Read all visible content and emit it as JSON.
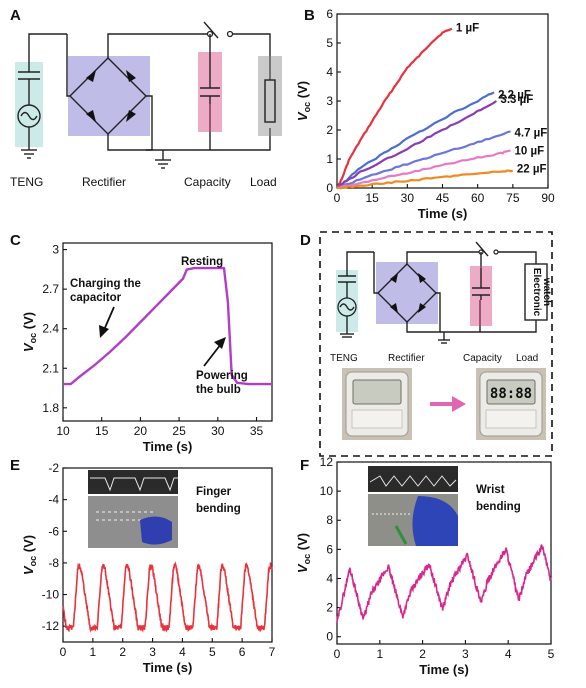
{
  "panels": {
    "A": {
      "letter": "A",
      "labels": {
        "teng": "TENG",
        "rectifier": "Rectifier",
        "capacity": "Capacity",
        "load": "Load"
      }
    },
    "B": {
      "letter": "B",
      "chart_data": {
        "type": "line",
        "xlabel": "Time (s)",
        "ylabel": "V",
        "ylabel_sub": "oc",
        "ylabel_unit": " (V)",
        "xlim": [
          0,
          90
        ],
        "ylim": [
          0,
          6
        ],
        "xticks": [
          0,
          15,
          30,
          45,
          60,
          75,
          90
        ],
        "yticks": [
          0,
          1,
          2,
          3,
          4,
          5,
          6
        ],
        "series": [
          {
            "name": "1 µF",
            "color": "#e8323c",
            "x": [
              0,
              2,
              5,
              10,
              15,
              20,
              25,
              30,
              35,
              40,
              45,
              49
            ],
            "y": [
              0,
              0.3,
              0.95,
              1.65,
              2.3,
              2.95,
              3.55,
              4.15,
              4.55,
              5.0,
              5.35,
              5.5
            ]
          },
          {
            "name": "2.2 µF",
            "color": "#4a6fcf",
            "x": [
              0,
              3,
              10,
              20,
              30,
              40,
              50,
              60,
              67
            ],
            "y": [
              0,
              0.2,
              0.7,
              1.2,
              1.7,
              2.15,
              2.6,
              3.0,
              3.3
            ]
          },
          {
            "name": "3.3 µF",
            "color": "#8a3db0",
            "x": [
              0,
              3,
              10,
              20,
              30,
              40,
              50,
              60,
              68
            ],
            "y": [
              0,
              0.18,
              0.55,
              0.95,
              1.35,
              1.8,
              2.2,
              2.65,
              3.0
            ]
          },
          {
            "name": "4.7 µF",
            "color": "#6b76d8",
            "x": [
              0,
              5,
              15,
              25,
              35,
              45,
              55,
              65,
              74
            ],
            "y": [
              0,
              0.15,
              0.45,
              0.7,
              0.95,
              1.2,
              1.45,
              1.7,
              1.95
            ]
          },
          {
            "name": "10 µF",
            "color": "#e67ac4",
            "x": [
              0,
              10,
              20,
              30,
              40,
              50,
              60,
              70,
              74
            ],
            "y": [
              0,
              0.18,
              0.35,
              0.52,
              0.7,
              0.88,
              1.05,
              1.2,
              1.3
            ]
          },
          {
            "name": "22 µF",
            "color": "#f08a1e",
            "x": [
              0,
              10,
              20,
              30,
              40,
              50,
              60,
              70,
              75
            ],
            "y": [
              0,
              0.08,
              0.17,
              0.25,
              0.33,
              0.42,
              0.5,
              0.57,
              0.6
            ]
          }
        ]
      }
    },
    "C": {
      "letter": "C",
      "chart_data": {
        "type": "line",
        "xlabel": "Time (s)",
        "ylabel": "V",
        "ylabel_sub": "oc",
        "ylabel_unit": " (V)",
        "xlim": [
          10,
          37
        ],
        "ylim": [
          1.7,
          3.05
        ],
        "xticks": [
          10,
          15,
          20,
          25,
          30,
          35
        ],
        "yticks": [
          1.8,
          2.1,
          2.4,
          2.7,
          3.0
        ],
        "series": [
          {
            "color": "#b23ec8",
            "x": [
              10,
              11,
              12,
              14,
              16,
              18,
              20,
              22,
              24,
              25.5,
              26,
              27,
              28,
              29,
              30,
              30.8,
              31.3,
              31.8,
              32.5,
              34,
              36,
              37
            ],
            "y": [
              1.98,
              1.98,
              2.03,
              2.12,
              2.22,
              2.33,
              2.45,
              2.57,
              2.69,
              2.78,
              2.85,
              2.86,
              2.86,
              2.86,
              2.86,
              2.86,
              2.6,
              2.05,
              1.99,
              1.98,
              1.98,
              1.98
            ]
          }
        ],
        "annotations": {
          "resting": "Resting",
          "charging_1": "Charging the",
          "charging_2": "capacitor",
          "powering_1": "Powering",
          "powering_2": "the bulb"
        }
      }
    },
    "D": {
      "letter": "D",
      "labels": {
        "teng": "TENG",
        "rectifier": "Rectifier",
        "capacity": "Capacity",
        "load": "Load",
        "watch_1": "Electronic",
        "watch_2": "watch",
        "lcd": "88:88"
      }
    },
    "E": {
      "letter": "E",
      "chart_data": {
        "type": "line",
        "xlabel": "Time (s)",
        "ylabel": "V",
        "ylabel_sub": "oc",
        "ylabel_unit": " (V)",
        "xlim": [
          0,
          7
        ],
        "ylim": [
          -13,
          -2
        ],
        "xticks": [
          0,
          1,
          2,
          3,
          4,
          5,
          6,
          7
        ],
        "yticks": [
          -12,
          -10,
          -8,
          -6,
          -4,
          -2
        ],
        "period": 0.8,
        "phase": 0.35,
        "high": -8.4,
        "low": -12.1,
        "color": "#e8323c",
        "annotation_1": "Finger",
        "annotation_2": "bending"
      }
    },
    "F": {
      "letter": "F",
      "chart_data": {
        "type": "line",
        "xlabel": "Time (s)",
        "ylabel": "V",
        "ylabel_sub": "oc",
        "ylabel_unit": " (V)",
        "xlim": [
          0,
          5
        ],
        "ylim": [
          -0.5,
          12
        ],
        "xticks": [
          0,
          1,
          2,
          3,
          4,
          5
        ],
        "yticks": [
          0,
          2,
          4,
          6,
          8,
          10,
          12
        ],
        "peaks_x": [
          0.3,
          1.2,
          2.15,
          3.05,
          3.95,
          4.8
        ],
        "peaks_y": [
          4.7,
          4.8,
          5.0,
          5.6,
          6.0,
          6.2
        ],
        "troughs_y": [
          0.5,
          1.2,
          1.4,
          1.9,
          2.3,
          2.5
        ],
        "color": "#d6278f",
        "annotation_1": "Wrist",
        "annotation_2": "bending"
      }
    }
  }
}
